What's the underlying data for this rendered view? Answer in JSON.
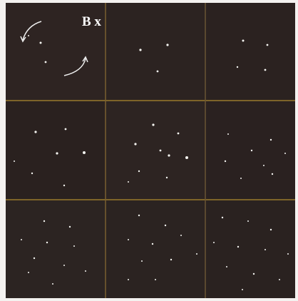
{
  "figure": {
    "label": "B x"
  }
}
